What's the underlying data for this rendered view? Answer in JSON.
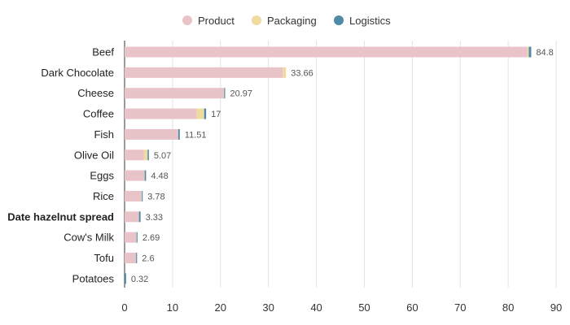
{
  "chart_data": {
    "type": "bar",
    "orientation": "horizontal",
    "stacked": true,
    "categories": [
      "Beef",
      "Dark Chocolate",
      "Cheese",
      "Coffee",
      "Fish",
      "Olive Oil",
      "Eggs",
      "Rice",
      "Date hazelnut spread",
      "Cow's Milk",
      "Tofu",
      "Potatoes"
    ],
    "highlighted_category": "Date hazelnut spread",
    "series": [
      {
        "name": "Product",
        "color": "#e8c4c9",
        "values": [
          84.0,
          33.0,
          20.7,
          15.0,
          11.2,
          4.0,
          4.2,
          3.5,
          3.0,
          2.4,
          2.4,
          0.0
        ]
      },
      {
        "name": "Packaging",
        "color": "#efdaa0",
        "values": [
          0.3,
          0.66,
          0.07,
          1.6,
          0.0,
          0.8,
          0.0,
          0.1,
          0.0,
          0.09,
          0.0,
          0.0
        ]
      },
      {
        "name": "Logistics",
        "color": "#4f8aa8",
        "values": [
          0.5,
          0.0,
          0.2,
          0.4,
          0.31,
          0.27,
          0.28,
          0.18,
          0.33,
          0.2,
          0.2,
          0.32
        ]
      }
    ],
    "totals": [
      84.8,
      33.66,
      20.97,
      17,
      11.51,
      5.07,
      4.48,
      3.78,
      3.33,
      2.69,
      2.6,
      0.32
    ],
    "xlim": [
      0,
      90
    ],
    "xticks": [
      0,
      10,
      20,
      30,
      40,
      50,
      60,
      70,
      80,
      90
    ],
    "grid": true,
    "legend_position": "top-center"
  }
}
